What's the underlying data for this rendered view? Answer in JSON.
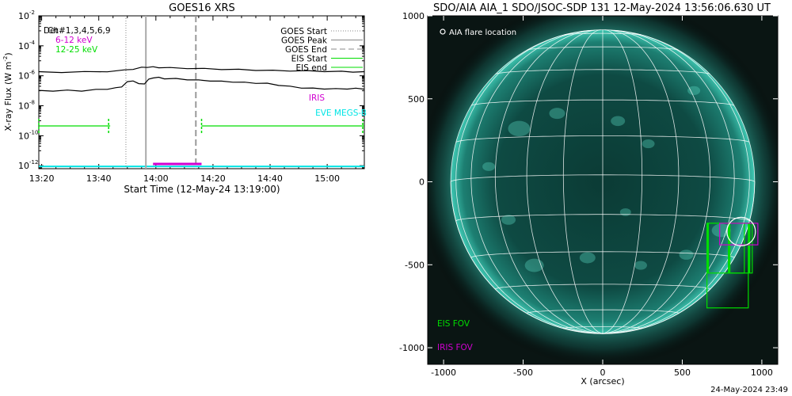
{
  "chart_data": [
    {
      "type": "line",
      "title": "GOES16 XRS",
      "xlabel": "Start Time (12-May-24 13:19:00)",
      "ylabel": "X-ray Flux (W m",
      "ylabel_sup": "-2",
      "ylabel_close": ")",
      "x_ticks": [
        "13:20",
        "13:40",
        "14:00",
        "14:20",
        "14:40",
        "15:00"
      ],
      "y_tick_base": "10",
      "y_ticks": [
        "-2",
        "-4",
        "-6",
        "-8",
        "-10",
        "-12"
      ],
      "ylim_log10": [
        -12.2,
        -2
      ],
      "xlim_minutes": [
        0,
        114
      ],
      "grid": false,
      "legend_left": [
        {
          "text": "Ch#1,3,4,5,6,9",
          "color": "#000000"
        },
        {
          "text": "6-12 keV",
          "color": "#d000d0"
        },
        {
          "text": "12-25 keV",
          "color": "#00dd00"
        }
      ],
      "legend_left_overlap": "Det",
      "legend_right": [
        {
          "text": "GOES Start",
          "style": "dotted",
          "color": "#888888"
        },
        {
          "text": "GOES Peak",
          "style": "solid",
          "color": "#888888"
        },
        {
          "text": "GOES End",
          "style": "dashed",
          "color": "#888888"
        },
        {
          "text": "EIS Start",
          "style": "solid",
          "color": "#00dd00"
        },
        {
          "text": "EIS end",
          "style": "solid",
          "color": "#00dd00"
        }
      ],
      "annotations": [
        {
          "text": "IRIS",
          "color": "#d000d0"
        },
        {
          "text": "EVE MEGS-B",
          "color": "#00e5e5"
        }
      ],
      "goes_times_minutes": {
        "start": 30.5,
        "peak": 37.5,
        "end": 55
      },
      "series": [
        {
          "name": "Ch#1,3,4,5,6,9 (upper)",
          "color": "#000000",
          "x": [
            0,
            8,
            16,
            24,
            30,
            33,
            36,
            38,
            40,
            42,
            46,
            52,
            58,
            64,
            70,
            76,
            82,
            88,
            94,
            100,
            106,
            110,
            114
          ],
          "log10_y": [
            -5.75,
            -5.76,
            -5.74,
            -5.71,
            -5.63,
            -5.55,
            -5.45,
            -5.42,
            -5.42,
            -5.44,
            -5.47,
            -5.5,
            -5.53,
            -5.56,
            -5.59,
            -5.62,
            -5.65,
            -5.66,
            -5.68,
            -5.7,
            -5.72,
            -5.73,
            -5.75
          ]
        },
        {
          "name": "Ch#1,3,4,5,6,9 (lower)",
          "color": "#000000",
          "x": [
            0,
            5,
            10,
            15,
            20,
            24,
            27,
            29,
            31,
            33,
            35,
            37,
            38.5,
            40,
            42,
            44,
            48,
            52,
            56,
            60,
            64,
            68,
            72,
            76,
            80,
            84,
            88,
            92,
            96,
            100,
            104,
            108,
            111,
            114
          ],
          "log10_y": [
            -7.0,
            -7.0,
            -6.98,
            -7.0,
            -6.93,
            -6.88,
            -6.82,
            -6.72,
            -6.42,
            -6.32,
            -6.55,
            -6.52,
            -6.25,
            -6.12,
            -6.12,
            -6.18,
            -6.2,
            -6.25,
            -6.3,
            -6.33,
            -6.38,
            -6.4,
            -6.45,
            -6.48,
            -6.52,
            -6.62,
            -6.72,
            -6.8,
            -6.84,
            -6.86,
            -6.88,
            -6.86,
            -6.85,
            -6.87
          ]
        }
      ],
      "eis_intervals_minutes": [
        [
          0,
          25
        ],
        [
          57,
          114
        ]
      ],
      "iris_interval_minutes": [
        40,
        57
      ],
      "eve_level_log10": -12.05
    },
    {
      "type": "image",
      "title": "SDO/AIA AIA_1 SDO/JSOC-SDP 131 12-May-2024 13:56:06.630 UT",
      "xlabel": "X (arcsec)",
      "x_ticks": [
        "-1000",
        "-500",
        "0",
        "500",
        "1000"
      ],
      "y_ticks": [
        "1000",
        "500",
        "0",
        "-500",
        "-1000"
      ],
      "xlim_arcsec": [
        -1100,
        1100
      ],
      "ylim_arcsec": [
        -1100,
        1000
      ],
      "solar_radius_arcsec": 955,
      "legend": [
        {
          "text": "AIA flare location",
          "color": "#ffffff",
          "marker": "circle"
        },
        {
          "text": "EIS FOV",
          "color": "#00dd00"
        },
        {
          "text": "IRIS FOV",
          "color": "#d000d0"
        }
      ],
      "flare_location_arcsec": [
        870,
        -300
      ],
      "eis_fov_boxes_arcsec": [
        [
          655,
          -550,
          890,
          -250
        ],
        [
          655,
          -760,
          915,
          -250
        ],
        [
          790,
          -550,
          940,
          -250
        ]
      ],
      "iris_fov_box_arcsec": [
        735,
        -380,
        975,
        -250
      ],
      "grid_spacing_deg": 15
    }
  ],
  "footer": {
    "timestamp": "24-May-2024 23:49"
  }
}
